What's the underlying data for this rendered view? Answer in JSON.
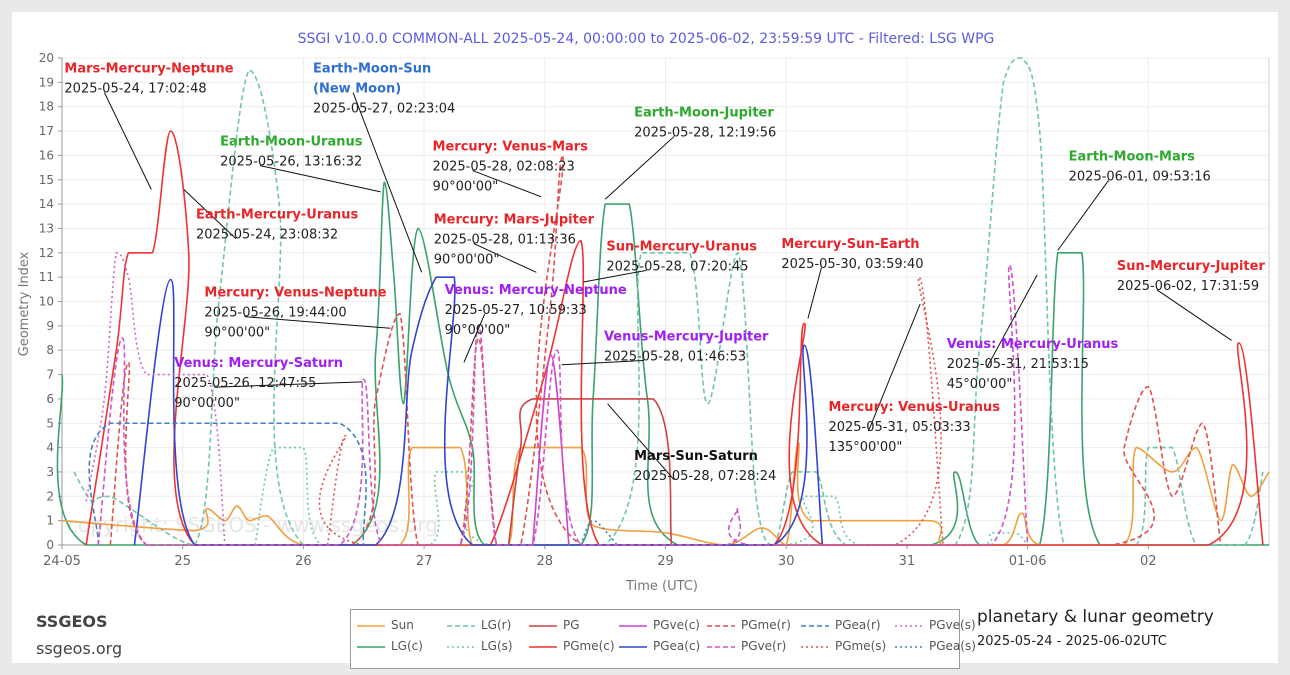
{
  "brand": {
    "name": "SSGEOS",
    "url": "ssgeos.org"
  },
  "subtitle": "planetary & lunar geometry",
  "date_range": "2025-05-24 - 2025-06-02UTC",
  "watermark": "copyright: SSGEOS - www.ssgeos.org",
  "legend": [
    {
      "name": "Sun",
      "color": "#f0a040",
      "dash": "solid"
    },
    {
      "name": "LG(r)",
      "color": "#6fc5a8",
      "dash": "dash"
    },
    {
      "name": "PG",
      "color": "#cc4444",
      "dash": "solid"
    },
    {
      "name": "PGve(c)",
      "color": "#cc44cc",
      "dash": "solid"
    },
    {
      "name": "PGme(r)",
      "color": "#e05050",
      "dash": "dash"
    },
    {
      "name": "PGea(r)",
      "color": "#4080c0",
      "dash": "dash"
    },
    {
      "name": "PGve(s)",
      "color": "#cc66cc",
      "dash": "dot"
    },
    {
      "name": "LG(c)",
      "color": "#3aa36a",
      "dash": "solid"
    },
    {
      "name": "LG(s)",
      "color": "#6fc5a8",
      "dash": "dot"
    },
    {
      "name": "PGme(c)",
      "color": "#ee3333",
      "dash": "solid"
    },
    {
      "name": "PGea(c)",
      "color": "#3344cc",
      "dash": "solid"
    },
    {
      "name": "PGve(r)",
      "color": "#cc55cc",
      "dash": "dash"
    },
    {
      "name": "PGme(s)",
      "color": "#e05050",
      "dash": "dot"
    },
    {
      "name": "PGea(s)",
      "color": "#4080c0",
      "dash": "dot"
    }
  ],
  "chart_data": {
    "type": "line",
    "title": "SSGI v10.0.0 COMMON-ALL 2025-05-24, 00:00:00 to 2025-06-02, 23:59:59 UTC - Filtered: LSG WPG",
    "xlabel": "Time (UTC)",
    "ylabel": "Geometry Index",
    "xlim": [
      0,
      10
    ],
    "ylim": [
      0,
      20
    ],
    "x_ticks": [
      {
        "x": 0,
        "label": "24-05"
      },
      {
        "x": 1,
        "label": "25"
      },
      {
        "x": 2,
        "label": "26"
      },
      {
        "x": 3,
        "label": "27"
      },
      {
        "x": 4,
        "label": "28"
      },
      {
        "x": 5,
        "label": "29"
      },
      {
        "x": 6,
        "label": "30"
      },
      {
        "x": 7,
        "label": "31"
      },
      {
        "x": 8,
        "label": "01-06"
      },
      {
        "x": 9,
        "label": "02"
      }
    ],
    "y_ticks": [
      0,
      1,
      2,
      3,
      4,
      5,
      6,
      7,
      8,
      9,
      10,
      11,
      12,
      13,
      14,
      15,
      16,
      17,
      18,
      19,
      20
    ],
    "grid": true,
    "series": [
      {
        "name": "LG(c)",
        "color": "#3aa36a",
        "dash": "solid",
        "points": [
          [
            0,
            7
          ],
          [
            0.2,
            0
          ],
          [
            2.4,
            0
          ],
          [
            2.6,
            8
          ],
          [
            2.67,
            14.9
          ],
          [
            2.75,
            11
          ],
          [
            2.83,
            5.8
          ],
          [
            2.95,
            13
          ],
          [
            3.2,
            7
          ],
          [
            3.4,
            4
          ],
          [
            3.5,
            0
          ],
          [
            4.3,
            0
          ],
          [
            4.4,
            6
          ],
          [
            4.5,
            14
          ],
          [
            4.7,
            14
          ],
          [
            4.85,
            6
          ],
          [
            5.1,
            0
          ],
          [
            7.2,
            0
          ],
          [
            7.4,
            3
          ],
          [
            7.6,
            0
          ],
          [
            8.1,
            0
          ],
          [
            8.25,
            12
          ],
          [
            8.45,
            12
          ],
          [
            8.6,
            0
          ],
          [
            10,
            0
          ]
        ]
      },
      {
        "name": "LG(r)",
        "color": "#6fc5a8",
        "dash": "dash",
        "points": [
          [
            0.1,
            3
          ],
          [
            0.25,
            1.8
          ],
          [
            0.4,
            2
          ],
          [
            1.1,
            0
          ],
          [
            1.3,
            10
          ],
          [
            1.55,
            19.5
          ],
          [
            1.8,
            14
          ],
          [
            2.0,
            0
          ],
          [
            4.5,
            0
          ],
          [
            4.8,
            12
          ],
          [
            5.2,
            12
          ],
          [
            5.35,
            5.8
          ],
          [
            5.6,
            12
          ],
          [
            5.75,
            2
          ],
          [
            5.9,
            0
          ],
          [
            6.05,
            3
          ],
          [
            6.25,
            3
          ],
          [
            6.5,
            0
          ],
          [
            7.4,
            0
          ],
          [
            7.6,
            8
          ],
          [
            7.8,
            19
          ],
          [
            7.95,
            20
          ],
          [
            8.1,
            17
          ],
          [
            8.3,
            0
          ],
          [
            8.9,
            0
          ],
          [
            9.0,
            4
          ],
          [
            9.2,
            4
          ],
          [
            9.4,
            0
          ],
          [
            9.8,
            0
          ],
          [
            9.95,
            3
          ]
        ]
      },
      {
        "name": "LG(s)",
        "color": "#6fc5a8",
        "dash": "dot",
        "points": [
          [
            1.6,
            0
          ],
          [
            1.75,
            4
          ],
          [
            2.0,
            4
          ],
          [
            2.15,
            0
          ],
          [
            3.05,
            0
          ],
          [
            3.1,
            3
          ],
          [
            3.4,
            3
          ],
          [
            3.55,
            0
          ],
          [
            6.0,
            0
          ],
          [
            6.15,
            2
          ],
          [
            6.4,
            2
          ],
          [
            6.6,
            0
          ],
          [
            7.6,
            0
          ],
          [
            7.7,
            0.5
          ],
          [
            7.9,
            0.5
          ],
          [
            8.0,
            0
          ]
        ]
      },
      {
        "name": "Sun",
        "color": "#f0a040",
        "dash": "solid",
        "points": [
          [
            0,
            1
          ],
          [
            1.1,
            0.6
          ],
          [
            1.2,
            1.5
          ],
          [
            1.35,
            1
          ],
          [
            1.45,
            1.6
          ],
          [
            1.55,
            1
          ],
          [
            1.7,
            1.2
          ],
          [
            2.0,
            0
          ],
          [
            2.8,
            0
          ],
          [
            2.9,
            4
          ],
          [
            3.3,
            4
          ],
          [
            3.4,
            0
          ],
          [
            3.7,
            0
          ],
          [
            3.8,
            4
          ],
          [
            4.3,
            4
          ],
          [
            4.4,
            0.8
          ],
          [
            5.0,
            0.5
          ],
          [
            5.5,
            0
          ],
          [
            5.8,
            0.7
          ],
          [
            6.0,
            0
          ],
          [
            6.1,
            4.2
          ],
          [
            6.2,
            1
          ],
          [
            7.2,
            1
          ],
          [
            7.3,
            0
          ],
          [
            7.8,
            0
          ],
          [
            7.95,
            1.3
          ],
          [
            8.1,
            0
          ],
          [
            8.8,
            0
          ],
          [
            8.9,
            4
          ],
          [
            9.2,
            3
          ],
          [
            9.4,
            4
          ],
          [
            9.6,
            1
          ],
          [
            9.7,
            3.3
          ],
          [
            9.85,
            2
          ],
          [
            10,
            3
          ]
        ]
      },
      {
        "name": "PG",
        "color": "#cc4444",
        "dash": "solid",
        "points": [
          [
            3.7,
            0
          ],
          [
            3.8,
            4
          ],
          [
            3.9,
            6
          ],
          [
            4.9,
            6
          ],
          [
            5.05,
            0
          ]
        ]
      },
      {
        "name": "PGme(c)",
        "color": "#ee3333",
        "dash": "solid",
        "points": [
          [
            0.2,
            0
          ],
          [
            0.45,
            8
          ],
          [
            0.55,
            12
          ],
          [
            0.75,
            12
          ],
          [
            0.9,
            17
          ],
          [
            1.05,
            12
          ],
          [
            1.1,
            0
          ],
          [
            3.3,
            0
          ],
          [
            3.55,
            0
          ],
          [
            4.0,
            7
          ],
          [
            4.3,
            12.5
          ],
          [
            4.45,
            0
          ],
          [
            5.9,
            0
          ],
          [
            6.15,
            9.1
          ],
          [
            6.3,
            0
          ],
          [
            9.5,
            0
          ],
          [
            9.75,
            8.3
          ],
          [
            9.95,
            0
          ]
        ]
      },
      {
        "name": "PGme(r)",
        "color": "#e05050",
        "dash": "dash",
        "points": [
          [
            0.4,
            0
          ],
          [
            0.55,
            7.5
          ],
          [
            0.7,
            0
          ],
          [
            2.4,
            0
          ],
          [
            2.6,
            6
          ],
          [
            2.8,
            9.5
          ],
          [
            2.95,
            0
          ],
          [
            3.3,
            0
          ],
          [
            3.45,
            8.5
          ],
          [
            3.6,
            0
          ],
          [
            3.8,
            0
          ],
          [
            4.05,
            10
          ],
          [
            4.15,
            16
          ],
          [
            4.3,
            0
          ],
          [
            8.7,
            0
          ],
          [
            8.8,
            4
          ],
          [
            9.0,
            6.5
          ],
          [
            9.2,
            2
          ],
          [
            9.45,
            5
          ],
          [
            9.6,
            0
          ]
        ]
      },
      {
        "name": "PGme(s)",
        "color": "#e05050",
        "dash": "dot",
        "points": [
          [
            2.2,
            0
          ],
          [
            2.35,
            4.5
          ],
          [
            2.5,
            0
          ],
          [
            6.9,
            0
          ],
          [
            7.1,
            11
          ],
          [
            7.3,
            0
          ]
        ]
      },
      {
        "name": "PGea(c)",
        "color": "#3344cc",
        "dash": "solid",
        "points": [
          [
            0.6,
            0
          ],
          [
            0.9,
            10.9
          ],
          [
            1.1,
            0
          ],
          [
            2.6,
            0
          ],
          [
            2.9,
            8
          ],
          [
            3.1,
            11
          ],
          [
            3.25,
            11
          ],
          [
            3.4,
            0
          ],
          [
            5.9,
            0
          ],
          [
            6.15,
            8.2
          ],
          [
            6.3,
            0
          ]
        ]
      },
      {
        "name": "PGea(r)",
        "color": "#4080c0",
        "dash": "dash",
        "points": [
          [
            0.3,
            0
          ],
          [
            0.4,
            5
          ],
          [
            2.3,
            5
          ],
          [
            2.5,
            0
          ]
        ]
      },
      {
        "name": "PGea(s)",
        "color": "#4080c0",
        "dash": "dot",
        "points": [
          [
            4.3,
            0
          ],
          [
            4.4,
            1
          ],
          [
            4.6,
            0
          ]
        ]
      },
      {
        "name": "PGve(c)",
        "color": "#cc44cc",
        "dash": "solid",
        "points": [
          [
            3.9,
            0
          ],
          [
            4.05,
            7.8
          ],
          [
            4.2,
            0
          ]
        ]
      },
      {
        "name": "PGve(r)",
        "color": "#cc55cc",
        "dash": "dash",
        "points": [
          [
            0.3,
            0
          ],
          [
            0.5,
            8.5
          ],
          [
            0.7,
            0
          ],
          [
            2.3,
            0
          ],
          [
            2.5,
            6.8
          ],
          [
            2.65,
            0
          ],
          [
            3.3,
            0
          ],
          [
            3.45,
            9
          ],
          [
            3.6,
            0
          ],
          [
            3.9,
            0
          ],
          [
            4.1,
            8
          ],
          [
            4.3,
            0
          ],
          [
            5.5,
            0
          ],
          [
            5.6,
            1.5
          ],
          [
            5.7,
            0
          ],
          [
            7.7,
            0
          ],
          [
            7.85,
            11.5
          ],
          [
            8.0,
            0
          ]
        ]
      },
      {
        "name": "PGve(s)",
        "color": "#cc66cc",
        "dash": "dot",
        "points": [
          [
            0.2,
            1.8
          ],
          [
            0.35,
            6
          ],
          [
            0.45,
            12
          ],
          [
            0.55,
            11
          ],
          [
            0.7,
            7
          ],
          [
            1.2,
            7
          ],
          [
            1.35,
            0
          ]
        ]
      }
    ],
    "annotations": [
      {
        "title": "Mars-Mercury-Neptune",
        "date": "2025-05-24, 17:02:48",
        "angle": "",
        "color": "#e8262a",
        "tx": 0.02,
        "ty": 19.4,
        "px": 0.74,
        "py": 14.6
      },
      {
        "title": "Earth-Mercury-Uranus",
        "date": "2025-05-24, 23:08:32",
        "angle": "",
        "color": "#e8262a",
        "tx": 1.11,
        "ty": 13.4,
        "px": 1.01,
        "py": 14.6
      },
      {
        "title": "Earth-Moon-Uranus",
        "date": "2025-05-26, 13:16:32",
        "angle": "",
        "color": "#2ea82e",
        "tx": 1.31,
        "ty": 16.4,
        "px": 2.64,
        "py": 14.5
      },
      {
        "title": "Venus: Mercury-Saturn",
        "date": "2025-05-26, 12:47:55",
        "angle": "90°00'00\"",
        "color": "#a020f0",
        "tx": 0.93,
        "ty": 7.3,
        "px": 2.49,
        "py": 6.7
      },
      {
        "title": "Mercury: Venus-Neptune",
        "date": "2025-05-26, 19:44:00",
        "angle": "90°00'00\"",
        "color": "#e8262a",
        "tx": 1.18,
        "ty": 10.2,
        "px": 2.72,
        "py": 8.9
      },
      {
        "title": "Earth-Moon-Sun",
        "title2": "(New Moon)",
        "date": "2025-05-27, 02:23:04",
        "angle": "",
        "color": "#2e6fd0",
        "tx": 2.08,
        "ty": 19.4,
        "px": 2.98,
        "py": 11.2
      },
      {
        "title": "Mercury: Venus-Mars",
        "date": "2025-05-28, 02:08:23",
        "angle": "90°00'00\"",
        "color": "#e8262a",
        "tx": 3.07,
        "ty": 16.2,
        "px": 3.97,
        "py": 14.3
      },
      {
        "title": "Mercury: Mars-Jupiter",
        "date": "2025-05-28, 01:13:36",
        "angle": "90°00'00\"",
        "color": "#e8262a",
        "tx": 3.08,
        "ty": 13.2,
        "px": 3.93,
        "py": 11.2
      },
      {
        "title": "Venus: Mercury-Neptune",
        "date": "2025-05-27, 10:59:33",
        "angle": "90°00'00\"",
        "color": "#a020f0",
        "tx": 3.17,
        "ty": 10.3,
        "px": 3.33,
        "py": 7.5
      },
      {
        "title": "Earth-Moon-Jupiter",
        "date": "2025-05-28, 12:19:56",
        "angle": "",
        "color": "#2ea82e",
        "tx": 4.74,
        "ty": 17.6,
        "px": 4.5,
        "py": 14.2
      },
      {
        "title": "Sun-Mercury-Uranus",
        "date": "2025-05-28, 07:20:45",
        "angle": "",
        "color": "#e8262a",
        "tx": 4.51,
        "ty": 12.1,
        "px": 4.32,
        "py": 10.8
      },
      {
        "title": "Venus-Mercury-Jupiter",
        "date": "2025-05-28, 01:46:53",
        "angle": "",
        "color": "#a020f0",
        "tx": 4.49,
        "ty": 8.4,
        "px": 4.14,
        "py": 7.4
      },
      {
        "title": "Mars-Sun-Saturn",
        "date": "2025-05-28, 07:28:24",
        "angle": "",
        "color": "#111111",
        "tx": 4.74,
        "ty": 3.5,
        "px": 4.52,
        "py": 5.8
      },
      {
        "title": "Mercury-Sun-Earth",
        "date": "2025-05-30, 03:59:40",
        "angle": "",
        "color": "#e8262a",
        "tx": 5.96,
        "ty": 12.2,
        "px": 6.18,
        "py": 9.3
      },
      {
        "title": "Mercury: Venus-Uranus",
        "date": "2025-05-31, 05:03:33",
        "angle": "135°00'00\"",
        "color": "#e8262a",
        "tx": 6.35,
        "ty": 5.5,
        "px": 7.11,
        "py": 9.9
      },
      {
        "title": "Venus: Mercury-Uranus",
        "date": "2025-05-31, 21:53:15",
        "angle": "45°00'00\"",
        "color": "#a020f0",
        "tx": 7.33,
        "ty": 8.1,
        "px": 8.08,
        "py": 11.1
      },
      {
        "title": "Earth-Moon-Mars",
        "date": "2025-06-01, 09:53:16",
        "angle": "",
        "color": "#2ea82e",
        "tx": 8.34,
        "ty": 15.8,
        "px": 8.25,
        "py": 12.1
      },
      {
        "title": "Sun-Mercury-Jupiter",
        "date": "2025-06-02, 17:31:59",
        "angle": "",
        "color": "#e8262a",
        "tx": 8.74,
        "ty": 11.3,
        "px": 9.69,
        "py": 8.4
      }
    ]
  }
}
